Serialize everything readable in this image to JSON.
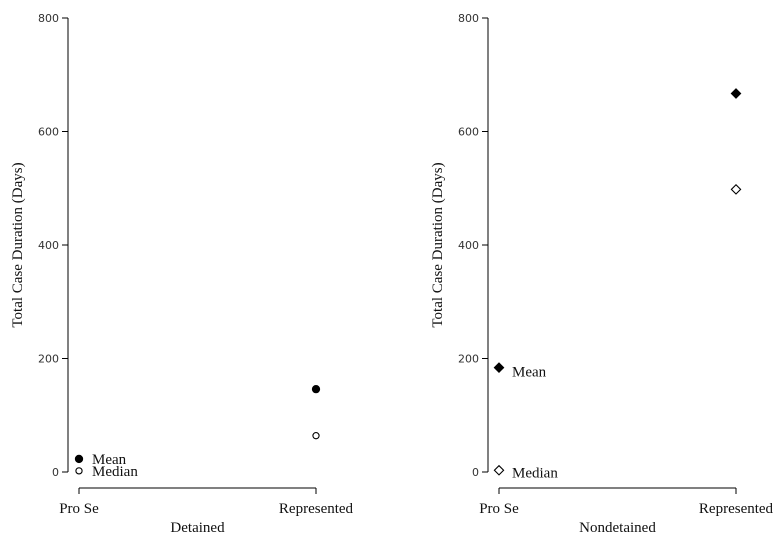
{
  "chart_data": [
    {
      "type": "scatter",
      "xlabel": "Detained",
      "ylabel": "Total Case Duration (Days)",
      "categories": [
        "Pro Se",
        "Represented"
      ],
      "ylim": [
        0,
        800
      ],
      "yticks": [
        0,
        200,
        400,
        600,
        800
      ],
      "marker": "circle",
      "grid": false,
      "series": [
        {
          "name": "Mean",
          "fill": "filled",
          "values": [
            23,
            146
          ]
        },
        {
          "name": "Median",
          "fill": "hollow",
          "values": [
            2,
            64
          ]
        }
      ]
    },
    {
      "type": "scatter",
      "xlabel": "Nondetained",
      "ylabel": "Total Case Duration (Days)",
      "categories": [
        "Pro Se",
        "Represented"
      ],
      "ylim": [
        0,
        800
      ],
      "yticks": [
        0,
        200,
        400,
        600,
        800
      ],
      "marker": "diamond",
      "grid": false,
      "series": [
        {
          "name": "Mean",
          "fill": "filled",
          "values": [
            184,
            667
          ]
        },
        {
          "name": "Median",
          "fill": "hollow",
          "values": [
            3,
            498
          ]
        }
      ]
    }
  ]
}
